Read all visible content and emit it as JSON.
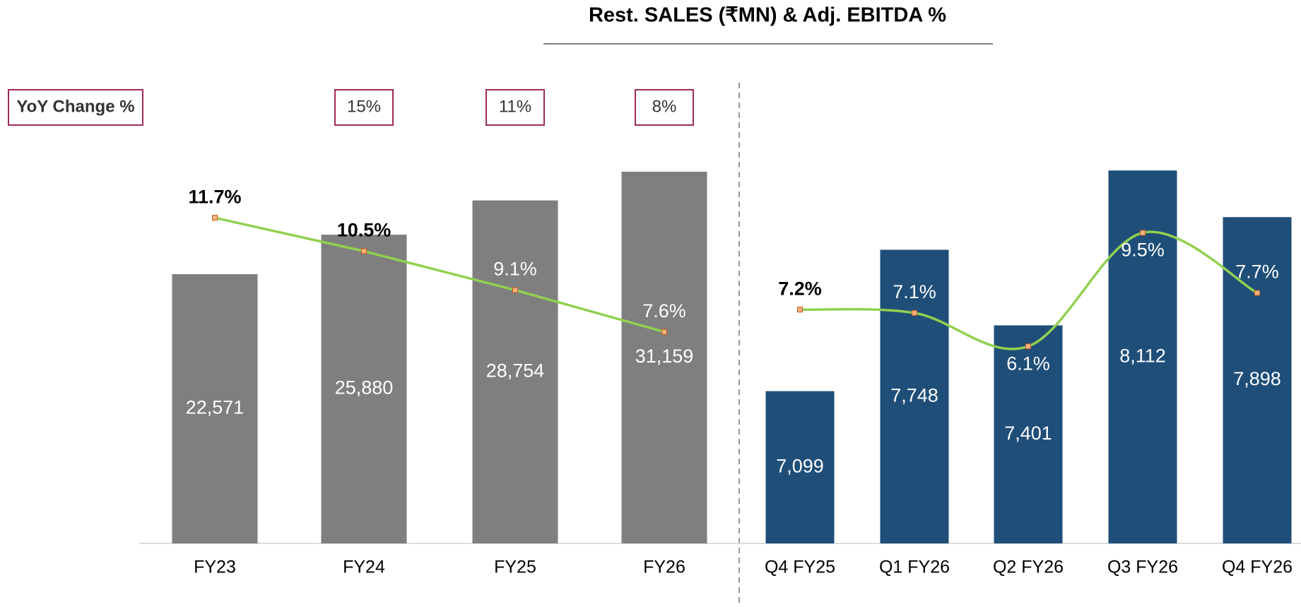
{
  "title": "Rest. SALES (₹MN) & Adj. EBITDA %",
  "chart_data": [
    {
      "type": "bar_line",
      "categories": [
        "FY23",
        "FY24",
        "FY25",
        "FY26"
      ],
      "ylim": [
        0,
        42000
      ],
      "y2lim": [
        0,
        18
      ],
      "series": [
        {
          "color": "#7f7f7f",
          "values": [
            22571,
            25880,
            28754,
            31159
          ],
          "value_labels": [
            "22,571",
            "25,880",
            "28,754",
            "31,159"
          ]
        },
        {
          "color": "#92d050",
          "axis": "y2",
          "smooth": false,
          "values": [
            11.7,
            10.5,
            9.1,
            7.6
          ],
          "value_labels": [
            "11.7%",
            "10.5%",
            "9.1%",
            "7.6%"
          ]
        }
      ],
      "yoy": {
        "label": "YoY Change %",
        "values": [
          null,
          15,
          11,
          8
        ],
        "value_labels": [
          null,
          "15%",
          "11%",
          "8%"
        ]
      }
    },
    {
      "type": "bar_line",
      "categories": [
        "Q4 FY25",
        "Q1 FY26",
        "Q2 FY26",
        "Q3 FY26",
        "Q4 FY26"
      ],
      "ylim": [
        6400,
        8700
      ],
      "y2lim": [
        0.2,
        15.2
      ],
      "series": [
        {
          "color": "#1f4e79",
          "values": [
            7099,
            7748,
            7401,
            8112,
            7898
          ],
          "value_labels": [
            "7,099",
            "7,748",
            "7,401",
            "8,112",
            "7,898"
          ]
        },
        {
          "color": "#92d050",
          "axis": "y2",
          "smooth": true,
          "values": [
            7.2,
            7.1,
            6.1,
            9.5,
            7.7
          ],
          "value_labels": [
            "7.2%",
            "7.1%",
            "6.1%",
            "9.5%",
            "7.7%"
          ]
        }
      ]
    }
  ]
}
